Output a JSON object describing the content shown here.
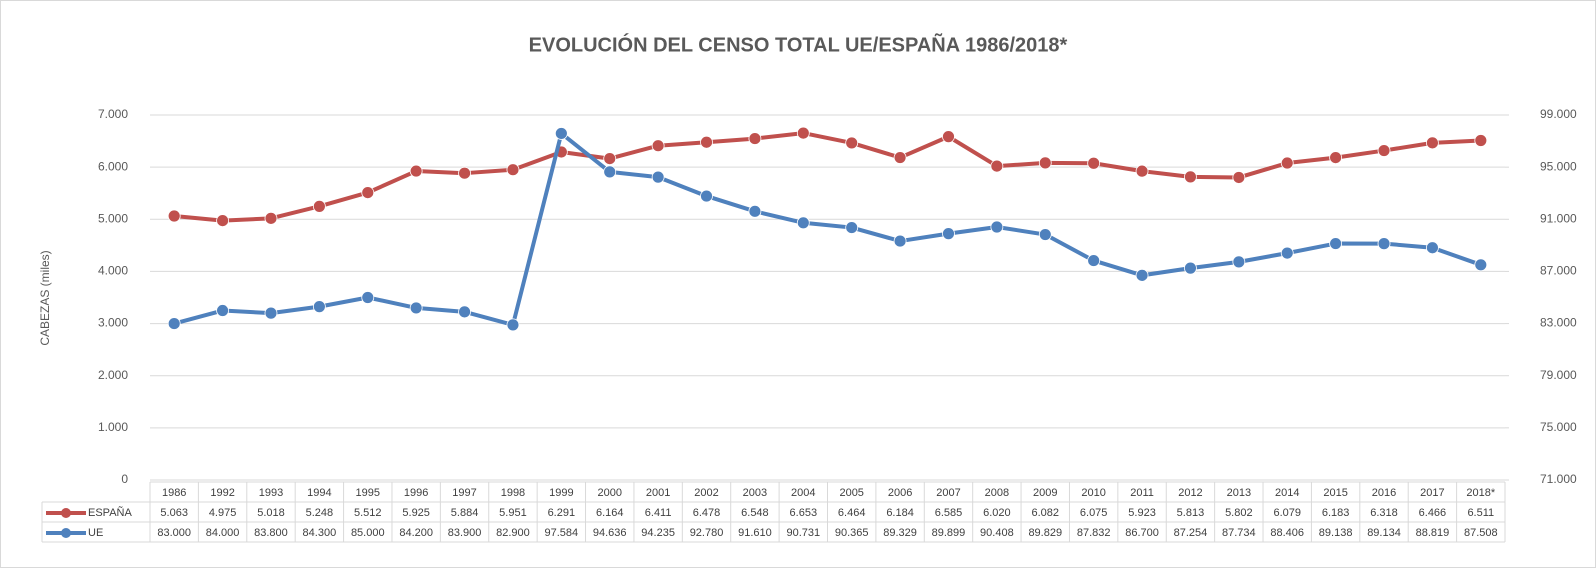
{
  "chart_data": {
    "type": "line",
    "title": "EVOLUCIÓN DEL CENSO TOTAL UE/ESPAÑA 1986/2018*",
    "y_label": "CABEZAS (miles)",
    "categories": [
      "1986",
      "1992",
      "1993",
      "1994",
      "1995",
      "1996",
      "1997",
      "1998",
      "1999",
      "2000",
      "2001",
      "2002",
      "2003",
      "2004",
      "2005",
      "2006",
      "2007",
      "2008",
      "2009",
      "2010",
      "2011",
      "2012",
      "2013",
      "2014",
      "2015",
      "2016",
      "2017",
      "2018*"
    ],
    "ylim": [
      0,
      7000
    ],
    "yticks": [
      {
        "value": 0,
        "label": "0"
      },
      {
        "value": 1000,
        "label": "1.000"
      },
      {
        "value": 2000,
        "label": "2.000"
      },
      {
        "value": 3000,
        "label": "3.000"
      },
      {
        "value": 4000,
        "label": "4.000"
      },
      {
        "value": 5000,
        "label": "5.000"
      },
      {
        "value": 6000,
        "label": "6.000"
      },
      {
        "value": 7000,
        "label": "7.000"
      }
    ],
    "y2lim": [
      71000,
      99000
    ],
    "y2ticks": [
      {
        "value": 71000,
        "label": "71.000"
      },
      {
        "value": 75000,
        "label": "75.000"
      },
      {
        "value": 79000,
        "label": "79.000"
      },
      {
        "value": 83000,
        "label": "83.000"
      },
      {
        "value": 87000,
        "label": "87.000"
      },
      {
        "value": 91000,
        "label": "91.000"
      },
      {
        "value": 95000,
        "label": "95.000"
      },
      {
        "value": 99000,
        "label": "99.000"
      }
    ],
    "grid": true,
    "series": [
      {
        "name": "ESPAÑA",
        "color": "#c0504d",
        "axis": "y",
        "values": [
          5063,
          4975,
          5018,
          5248,
          5512,
          5925,
          5884,
          5951,
          6291,
          6164,
          6411,
          6478,
          6548,
          6653,
          6464,
          6184,
          6585,
          6020,
          6082,
          6075,
          5923,
          5813,
          5802,
          6079,
          6183,
          6318,
          6466,
          6511
        ],
        "value_labels": [
          "5.063",
          "4.975",
          "5.018",
          "5.248",
          "5.512",
          "5.925",
          "5.884",
          "5.951",
          "6.291",
          "6.164",
          "6.411",
          "6.478",
          "6.548",
          "6.653",
          "6.464",
          "6.184",
          "6.585",
          "6.020",
          "6.082",
          "6.075",
          "5.923",
          "5.813",
          "5.802",
          "6.079",
          "6.183",
          "6.318",
          "6.466",
          "6.511"
        ]
      },
      {
        "name": "UE",
        "color": "#4f81bd",
        "axis": "y2",
        "values": [
          83000,
          84000,
          83800,
          84300,
          85000,
          84200,
          83900,
          82900,
          97584,
          94636,
          94235,
          92780,
          91610,
          90731,
          90365,
          89329,
          89899,
          90408,
          89829,
          87832,
          86700,
          87254,
          87734,
          88406,
          89138,
          89134,
          88819,
          87508
        ],
        "value_labels": [
          "83.000",
          "84.000",
          "83.800",
          "84.300",
          "85.000",
          "84.200",
          "83.900",
          "82.900",
          "97.584",
          "94.636",
          "94.235",
          "92.780",
          "91.610",
          "90.731",
          "90.365",
          "89.329",
          "89.899",
          "90.408",
          "89.829",
          "87.832",
          "86.700",
          "87.254",
          "87.734",
          "88.406",
          "89.138",
          "89.134",
          "88.819",
          "87.508"
        ]
      }
    ]
  }
}
